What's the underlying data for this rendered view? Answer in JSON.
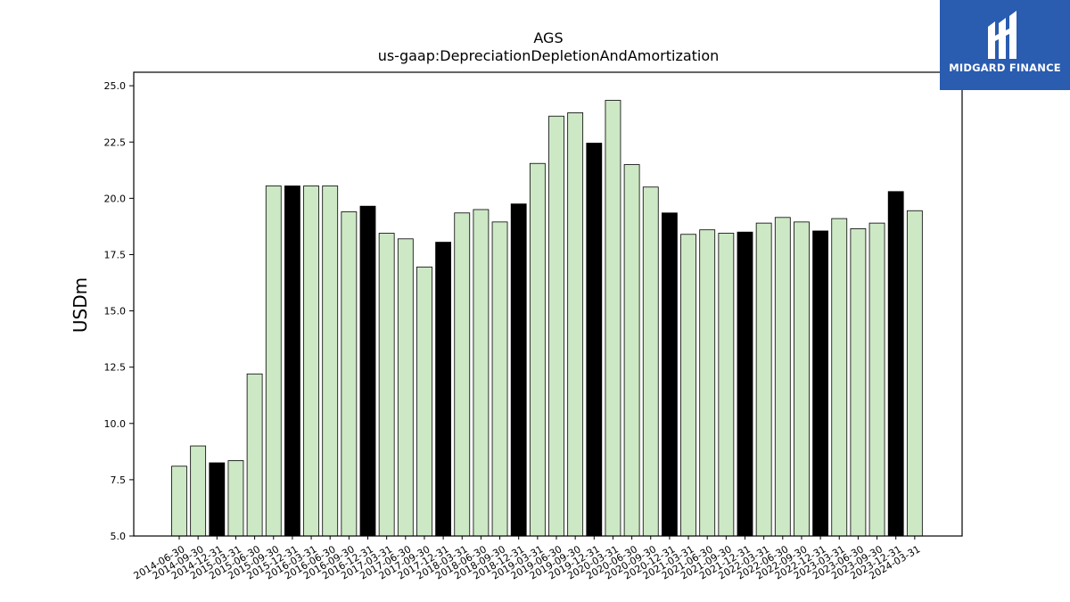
{
  "chart_data": {
    "type": "bar",
    "title": "AGS",
    "subtitle": "us-gaap:DepreciationDepletionAndAmortization",
    "ylabel": "USDm",
    "xlabel": "",
    "ylim": [
      5.0,
      25.6
    ],
    "yticks": [
      "5.0",
      "7.5",
      "10.0",
      "12.5",
      "15.0",
      "17.5",
      "20.0",
      "22.5",
      "25.0"
    ],
    "grid": false,
    "colors": {
      "quarter": "#cde8c5",
      "year_end": "#000000",
      "edge": "#000000"
    },
    "categories": [
      "2014-06-30",
      "2014-09-30",
      "2014-12-31",
      "2015-03-31",
      "2015-06-30",
      "2015-09-30",
      "2015-12-31",
      "2016-03-31",
      "2016-06-30",
      "2016-09-30",
      "2016-12-31",
      "2017-03-31",
      "2017-06-30",
      "2017-09-30",
      "2017-12-31",
      "2018-03-31",
      "2018-06-30",
      "2018-09-30",
      "2018-12-31",
      "2019-03-31",
      "2019-06-30",
      "2019-09-30",
      "2019-12-31",
      "2020-03-31",
      "2020-06-30",
      "2020-09-30",
      "2020-12-31",
      "2021-03-31",
      "2021-06-30",
      "2021-09-30",
      "2021-12-31",
      "2022-03-31",
      "2022-06-30",
      "2022-09-30",
      "2022-12-31",
      "2023-03-31",
      "2023-06-30",
      "2023-09-30",
      "2023-12-31",
      "2024-03-31"
    ],
    "values": [
      8.1,
      9.0,
      8.25,
      8.35,
      12.2,
      20.55,
      20.55,
      20.55,
      20.55,
      19.4,
      19.65,
      18.45,
      18.2,
      16.95,
      18.05,
      19.35,
      19.5,
      18.95,
      19.75,
      21.55,
      23.65,
      23.8,
      22.45,
      24.35,
      21.5,
      20.5,
      19.35,
      18.4,
      18.6,
      18.45,
      18.5,
      18.9,
      19.15,
      18.95,
      18.55,
      19.1,
      18.65,
      18.9,
      20.3,
      19.45
    ]
  },
  "logo": {
    "text": "MIDGARD FINANCE",
    "icon": "midgard-logo-icon"
  }
}
